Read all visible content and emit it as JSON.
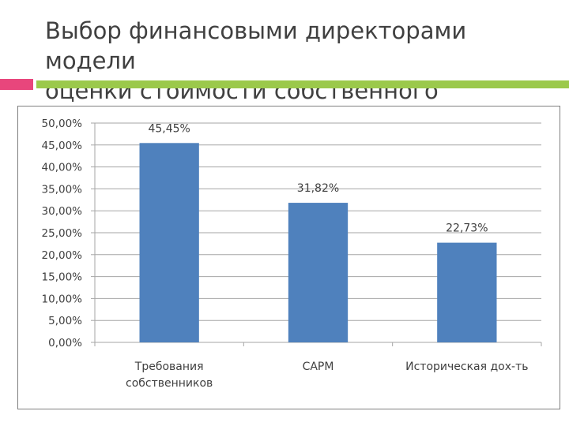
{
  "slide": {
    "title_line1": "Выбор финансовыми директорами модели",
    "title_line2": "оценки стоимости собственного капитала"
  },
  "colors": {
    "bar": "#4f81bd",
    "accent_pink": "#e8467c",
    "accent_green": "#9bc94b",
    "grid": "#a6a6a6"
  },
  "chart_data": {
    "type": "bar",
    "categories": [
      [
        "Требования",
        "собственников"
      ],
      [
        "CAPM"
      ],
      [
        "Историческая дох-ть"
      ]
    ],
    "values": [
      45.45,
      31.82,
      22.73
    ],
    "data_labels": [
      "45,45%",
      "31,82%",
      "22,73%"
    ],
    "yticks": [
      "0,00%",
      "5,00%",
      "10,00%",
      "15,00%",
      "20,00%",
      "25,00%",
      "30,00%",
      "35,00%",
      "40,00%",
      "45,00%",
      "50,00%"
    ],
    "ylim": [
      0,
      50
    ],
    "ytick_step": 5,
    "grid": true,
    "legend": "none",
    "title": "",
    "xlabel": "",
    "ylabel": ""
  }
}
